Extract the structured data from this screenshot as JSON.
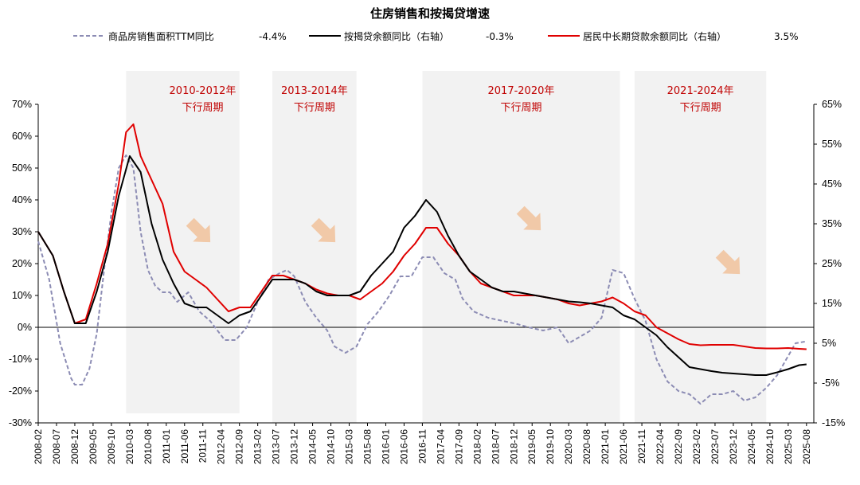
{
  "chart_data": {
    "type": "line",
    "title": "住房销售和按揭贷增速",
    "series": [
      {
        "name": "商品房销售面积TTM同比",
        "latest": "-4.4%",
        "axis": "left",
        "style": "dashed",
        "color": "#8c8cb4",
        "points": [
          [
            "2008-02",
            27
          ],
          [
            "2008-05",
            15
          ],
          [
            "2008-08",
            -5
          ],
          [
            "2008-11",
            -16
          ],
          [
            "2008-12",
            -18
          ],
          [
            "2009-02",
            -18
          ],
          [
            "2009-04",
            -13
          ],
          [
            "2009-06",
            -2
          ],
          [
            "2009-08",
            18
          ],
          [
            "2009-10",
            36
          ],
          [
            "2009-12",
            50
          ],
          [
            "2010-02",
            54
          ],
          [
            "2010-04",
            50
          ],
          [
            "2010-06",
            30
          ],
          [
            "2010-08",
            18
          ],
          [
            "2010-10",
            13
          ],
          [
            "2010-12",
            11
          ],
          [
            "2011-02",
            11
          ],
          [
            "2011-04",
            8
          ],
          [
            "2011-07",
            11
          ],
          [
            "2011-10",
            5
          ],
          [
            "2012-01",
            2
          ],
          [
            "2012-03",
            -1
          ],
          [
            "2012-05",
            -4
          ],
          [
            "2012-08",
            -4
          ],
          [
            "2012-11",
            0
          ],
          [
            "2013-02",
            8
          ],
          [
            "2013-05",
            15
          ],
          [
            "2013-08",
            17
          ],
          [
            "2013-10",
            18
          ],
          [
            "2013-12",
            16
          ],
          [
            "2014-03",
            8
          ],
          [
            "2014-06",
            3
          ],
          [
            "2014-09",
            -1
          ],
          [
            "2014-11",
            -6
          ],
          [
            "2015-02",
            -8
          ],
          [
            "2015-05",
            -6
          ],
          [
            "2015-08",
            1
          ],
          [
            "2015-11",
            5
          ],
          [
            "2016-02",
            10
          ],
          [
            "2016-05",
            16
          ],
          [
            "2016-08",
            16
          ],
          [
            "2016-11",
            22
          ],
          [
            "2017-02",
            22
          ],
          [
            "2017-05",
            17
          ],
          [
            "2017-08",
            15
          ],
          [
            "2017-10",
            9
          ],
          [
            "2018-01",
            5
          ],
          [
            "2018-05",
            3
          ],
          [
            "2018-09",
            2
          ],
          [
            "2019-01",
            1
          ],
          [
            "2019-04",
            0
          ],
          [
            "2019-08",
            -1
          ],
          [
            "2019-12",
            0
          ],
          [
            "2020-03",
            -5
          ],
          [
            "2020-06",
            -3
          ],
          [
            "2020-09",
            -1
          ],
          [
            "2020-12",
            3
          ],
          [
            "2021-03",
            18
          ],
          [
            "2021-06",
            17
          ],
          [
            "2021-09",
            9
          ],
          [
            "2021-12",
            2
          ],
          [
            "2022-03",
            -10
          ],
          [
            "2022-06",
            -17
          ],
          [
            "2022-09",
            -20
          ],
          [
            "2022-12",
            -21
          ],
          [
            "2023-03",
            -24
          ],
          [
            "2023-06",
            -21
          ],
          [
            "2023-09",
            -21
          ],
          [
            "2023-12",
            -20
          ],
          [
            "2024-03",
            -23
          ],
          [
            "2024-06",
            -22
          ],
          [
            "2024-09",
            -19
          ],
          [
            "2024-12",
            -15
          ],
          [
            "2025-03",
            -9
          ],
          [
            "2025-05",
            -5
          ],
          [
            "2025-08",
            -4.4
          ]
        ]
      },
      {
        "name": "按揭贷余额同比（右轴）",
        "latest": "-0.3%",
        "axis": "right",
        "style": "solid",
        "color": "#000000",
        "points": [
          [
            "2008-02",
            33
          ],
          [
            "2008-06",
            27
          ],
          [
            "2008-09",
            18
          ],
          [
            "2008-12",
            10
          ],
          [
            "2009-03",
            10
          ],
          [
            "2009-06",
            18
          ],
          [
            "2009-09",
            28
          ],
          [
            "2009-12",
            42
          ],
          [
            "2010-03",
            52
          ],
          [
            "2010-06",
            48
          ],
          [
            "2010-09",
            35
          ],
          [
            "2010-12",
            26
          ],
          [
            "2011-03",
            20
          ],
          [
            "2011-06",
            15
          ],
          [
            "2011-09",
            14
          ],
          [
            "2011-12",
            14
          ],
          [
            "2012-03",
            12
          ],
          [
            "2012-06",
            10
          ],
          [
            "2012-09",
            12
          ],
          [
            "2012-12",
            13
          ],
          [
            "2013-03",
            17
          ],
          [
            "2013-06",
            21
          ],
          [
            "2013-09",
            21
          ],
          [
            "2013-12",
            21
          ],
          [
            "2014-03",
            20
          ],
          [
            "2014-06",
            18
          ],
          [
            "2014-09",
            17
          ],
          [
            "2014-12",
            17
          ],
          [
            "2015-03",
            17
          ],
          [
            "2015-06",
            18
          ],
          [
            "2015-09",
            22
          ],
          [
            "2015-12",
            25
          ],
          [
            "2016-03",
            28
          ],
          [
            "2016-06",
            34
          ],
          [
            "2016-09",
            37
          ],
          [
            "2016-12",
            41
          ],
          [
            "2017-03",
            38
          ],
          [
            "2017-06",
            32
          ],
          [
            "2017-09",
            27
          ],
          [
            "2017-12",
            23
          ],
          [
            "2018-03",
            21
          ],
          [
            "2018-06",
            19
          ],
          [
            "2018-09",
            18
          ],
          [
            "2018-12",
            18
          ],
          [
            "2019-03",
            17.5
          ],
          [
            "2019-06",
            17
          ],
          [
            "2019-09",
            16.5
          ],
          [
            "2019-12",
            16
          ],
          [
            "2020-03",
            15.5
          ],
          [
            "2020-06",
            15.3
          ],
          [
            "2020-09",
            15
          ],
          [
            "2020-12",
            14.5
          ],
          [
            "2021-03",
            14
          ],
          [
            "2021-06",
            12
          ],
          [
            "2021-09",
            11
          ],
          [
            "2021-12",
            9
          ],
          [
            "2022-03",
            7
          ],
          [
            "2022-06",
            4
          ],
          [
            "2022-09",
            1.5
          ],
          [
            "2022-12",
            -1
          ],
          [
            "2023-03",
            -1.5
          ],
          [
            "2023-06",
            -2
          ],
          [
            "2023-09",
            -2.4
          ],
          [
            "2023-12",
            -2.6
          ],
          [
            "2024-03",
            -2.8
          ],
          [
            "2024-06",
            -3
          ],
          [
            "2024-09",
            -3
          ],
          [
            "2024-12",
            -2.3
          ],
          [
            "2025-03",
            -1.5
          ],
          [
            "2025-06",
            -0.5
          ],
          [
            "2025-08",
            -0.3
          ]
        ]
      },
      {
        "name": "居民中长期贷款余额同比（右轴）",
        "latest": "3.5%",
        "axis": "right",
        "style": "solid",
        "color": "#e00000",
        "points": [
          [
            "2008-02",
            33
          ],
          [
            "2008-06",
            27
          ],
          [
            "2008-09",
            18
          ],
          [
            "2008-12",
            10
          ],
          [
            "2009-03",
            11
          ],
          [
            "2009-06",
            20
          ],
          [
            "2009-09",
            30
          ],
          [
            "2009-12",
            45
          ],
          [
            "2010-02",
            58
          ],
          [
            "2010-04",
            60
          ],
          [
            "2010-06",
            52
          ],
          [
            "2010-09",
            46
          ],
          [
            "2010-12",
            40
          ],
          [
            "2011-03",
            28
          ],
          [
            "2011-06",
            23
          ],
          [
            "2011-09",
            21
          ],
          [
            "2011-12",
            19
          ],
          [
            "2012-03",
            16
          ],
          [
            "2012-06",
            13
          ],
          [
            "2012-09",
            14
          ],
          [
            "2012-12",
            14
          ],
          [
            "2013-03",
            18
          ],
          [
            "2013-06",
            22
          ],
          [
            "2013-09",
            22
          ],
          [
            "2013-12",
            21
          ],
          [
            "2014-03",
            20
          ],
          [
            "2014-06",
            18.5
          ],
          [
            "2014-09",
            17.5
          ],
          [
            "2014-12",
            17
          ],
          [
            "2015-03",
            17
          ],
          [
            "2015-06",
            16
          ],
          [
            "2015-09",
            18
          ],
          [
            "2015-12",
            20
          ],
          [
            "2016-03",
            23
          ],
          [
            "2016-06",
            27
          ],
          [
            "2016-09",
            30
          ],
          [
            "2016-12",
            34
          ],
          [
            "2017-03",
            34
          ],
          [
            "2017-06",
            30
          ],
          [
            "2017-09",
            27
          ],
          [
            "2017-12",
            23
          ],
          [
            "2018-03",
            20
          ],
          [
            "2018-06",
            19
          ],
          [
            "2018-09",
            18
          ],
          [
            "2018-12",
            17
          ],
          [
            "2019-03",
            17
          ],
          [
            "2019-06",
            17
          ],
          [
            "2019-09",
            16.5
          ],
          [
            "2019-12",
            16
          ],
          [
            "2020-03",
            15
          ],
          [
            "2020-06",
            14.5
          ],
          [
            "2020-09",
            15
          ],
          [
            "2020-12",
            15.5
          ],
          [
            "2021-03",
            16.5
          ],
          [
            "2021-06",
            15
          ],
          [
            "2021-09",
            13
          ],
          [
            "2021-12",
            12
          ],
          [
            "2022-03",
            9
          ],
          [
            "2022-06",
            7.5
          ],
          [
            "2022-09",
            6
          ],
          [
            "2022-12",
            4.8
          ],
          [
            "2023-03",
            4.5
          ],
          [
            "2023-06",
            4.6
          ],
          [
            "2023-09",
            4.6
          ],
          [
            "2023-12",
            4.6
          ],
          [
            "2024-03",
            4.2
          ],
          [
            "2024-06",
            3.8
          ],
          [
            "2024-09",
            3.7
          ],
          [
            "2024-12",
            3.7
          ],
          [
            "2025-03",
            3.8
          ],
          [
            "2025-06",
            3.6
          ],
          [
            "2025-08",
            3.5
          ]
        ]
      }
    ],
    "left_axis": {
      "ylim": [
        -30,
        70
      ],
      "ticks": [
        "70%",
        "60%",
        "50%",
        "40%",
        "30%",
        "20%",
        "10%",
        "0%",
        "-10%",
        "-20%",
        "-30%"
      ]
    },
    "right_axis": {
      "ylim": [
        -15,
        65
      ],
      "ticks": [
        "65%",
        "55%",
        "45%",
        "35%",
        "25%",
        "15%",
        "5%",
        "-5%",
        "-15%"
      ]
    },
    "x_ticks": [
      "2008-02",
      "2008-07",
      "2008-12",
      "2009-05",
      "2009-10",
      "2010-03",
      "2010-08",
      "2011-01",
      "2011-06",
      "2011-11",
      "2012-04",
      "2012-09",
      "2013-02",
      "2013-07",
      "2013-12",
      "2014-05",
      "2014-10",
      "2015-03",
      "2015-08",
      "2016-01",
      "2016-06",
      "2016-11",
      "2017-04",
      "2017-09",
      "2018-02",
      "2018-07",
      "2018-12",
      "2019-05",
      "2019-10",
      "2020-03",
      "2020-08",
      "2021-01",
      "2021-06",
      "2021-11",
      "2022-04",
      "2022-09",
      "2023-02",
      "2023-07",
      "2023-12",
      "2024-05",
      "2024-10",
      "2025-03",
      "2025-08"
    ],
    "shaded_periods": [
      {
        "start": "2010-02",
        "end": "2012-09",
        "label_line1": "2010-2012年",
        "label_line2": "下行周期"
      },
      {
        "start": "2013-06",
        "end": "2015-05",
        "label_line1": "2013-2014年",
        "label_line2": "下行周期"
      },
      {
        "start": "2016-11",
        "end": "2021-05",
        "label_line1": "2017-2020年",
        "label_line2": "下行周期"
      },
      {
        "start": "2021-09",
        "end": "2024-09",
        "label_line1": "2021-2024年",
        "label_line2": "下行周期"
      }
    ],
    "x_range": [
      "2008-02",
      "2025-10"
    ]
  }
}
